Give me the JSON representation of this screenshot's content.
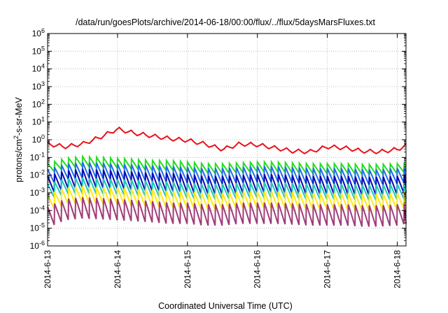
{
  "chart_data": {
    "type": "line",
    "title": "/data/run/goesPlots/archive/2014-06-18/00:00/flux/../flux/5daysMarsFluxes.txt",
    "xlabel": "Coordinated Universal Time (UTC)",
    "ylabel": {
      "prefix": "protons/cm",
      "sup": "2",
      "suffix": "-s-sr-MeV"
    },
    "yscale": "log",
    "ylim": [
      1e-06,
      1000000.0
    ],
    "y_ticks": [
      {
        "value": 1e-06,
        "base": "10",
        "exp": "-6"
      },
      {
        "value": 1e-05,
        "base": "10",
        "exp": "-5"
      },
      {
        "value": 0.0001,
        "base": "10",
        "exp": "-4"
      },
      {
        "value": 0.001,
        "base": "10",
        "exp": "-3"
      },
      {
        "value": 0.01,
        "base": "10",
        "exp": "-2"
      },
      {
        "value": 0.1,
        "base": "10",
        "exp": "-1"
      },
      {
        "value": 1,
        "base": "10",
        "exp": "0"
      },
      {
        "value": 10,
        "base": "10",
        "exp": "1"
      },
      {
        "value": 100,
        "base": "10",
        "exp": "2"
      },
      {
        "value": 1000,
        "base": "10",
        "exp": "3"
      },
      {
        "value": 10000,
        "base": "10",
        "exp": "4"
      },
      {
        "value": 100000,
        "base": "10",
        "exp": "5"
      },
      {
        "value": 1000000,
        "base": "10",
        "exp": "6"
      }
    ],
    "x_ticks": [
      "2014-6-13",
      "2014-6-14",
      "2014-6-15",
      "2014-6-16",
      "2014-6-17",
      "2014-6-18"
    ],
    "xlim": [
      "2014-06-13 00:00",
      "2014-06-18 03:00"
    ],
    "grid": true,
    "legend": "none",
    "series": [
      {
        "color": "#e8131a",
        "x": [
          "2014-06-13 00:00",
          "2014-06-13 06:00",
          "2014-06-13 12:00",
          "2014-06-13 18:00",
          "2014-06-14 00:00",
          "2014-06-14 06:00",
          "2014-06-14 12:00",
          "2014-06-14 18:00",
          "2014-06-15 00:00",
          "2014-06-15 06:00",
          "2014-06-15 12:00",
          "2014-06-15 18:00",
          "2014-06-16 00:00",
          "2014-06-16 06:00",
          "2014-06-16 12:00",
          "2014-06-16 18:00",
          "2014-06-17 00:00",
          "2014-06-17 06:00",
          "2014-06-17 12:00",
          "2014-06-17 18:00",
          "2014-06-18 00:00",
          "2014-06-18 03:00"
        ],
        "values": [
          0.5,
          0.35,
          0.5,
          1.2,
          3.5,
          2.0,
          1.4,
          1.0,
          0.8,
          0.5,
          0.25,
          0.5,
          0.45,
          0.3,
          0.2,
          0.18,
          0.35,
          0.3,
          0.2,
          0.18,
          0.25,
          0.4
        ]
      },
      {
        "color": "#22dd22",
        "x": [
          "2014-06-13 00:00",
          "2014-06-13 06:00",
          "2014-06-13 12:00",
          "2014-06-13 18:00",
          "2014-06-14 00:00",
          "2014-06-14 06:00",
          "2014-06-14 12:00",
          "2014-06-14 18:00",
          "2014-06-15 00:00",
          "2014-06-15 06:00",
          "2014-06-15 12:00",
          "2014-06-15 18:00",
          "2014-06-16 00:00",
          "2014-06-16 06:00",
          "2014-06-16 12:00",
          "2014-06-16 18:00",
          "2014-06-17 00:00",
          "2014-06-17 06:00",
          "2014-06-17 12:00",
          "2014-06-17 18:00",
          "2014-06-18 00:00",
          "2014-06-18 03:00"
        ],
        "values": [
          0.02,
          0.04,
          0.05,
          0.045,
          0.04,
          0.035,
          0.03,
          0.03,
          0.025,
          0.02,
          0.02,
          0.022,
          0.025,
          0.025,
          0.022,
          0.02,
          0.02,
          0.02,
          0.018,
          0.018,
          0.02,
          0.025
        ]
      },
      {
        "color": "#1f6fe8",
        "x": [
          "2014-06-13 00:00",
          "2014-06-13 06:00",
          "2014-06-13 12:00",
          "2014-06-13 18:00",
          "2014-06-14 00:00",
          "2014-06-14 06:00",
          "2014-06-14 12:00",
          "2014-06-14 18:00",
          "2014-06-15 00:00",
          "2014-06-15 06:00",
          "2014-06-15 12:00",
          "2014-06-15 18:00",
          "2014-06-16 00:00",
          "2014-06-16 06:00",
          "2014-06-16 12:00",
          "2014-06-16 18:00",
          "2014-06-17 00:00",
          "2014-06-17 06:00",
          "2014-06-17 12:00",
          "2014-06-17 18:00",
          "2014-06-18 00:00",
          "2014-06-18 03:00"
        ],
        "values": [
          0.006,
          0.012,
          0.015,
          0.014,
          0.012,
          0.011,
          0.01,
          0.009,
          0.008,
          0.007,
          0.007,
          0.008,
          0.009,
          0.009,
          0.008,
          0.007,
          0.007,
          0.007,
          0.006,
          0.006,
          0.007,
          0.008
        ]
      },
      {
        "color": "#0a0ab4",
        "x": [
          "2014-06-13 00:00",
          "2014-06-13 06:00",
          "2014-06-13 12:00",
          "2014-06-13 18:00",
          "2014-06-14 00:00",
          "2014-06-14 06:00",
          "2014-06-14 12:00",
          "2014-06-14 18:00",
          "2014-06-15 00:00",
          "2014-06-15 06:00",
          "2014-06-15 12:00",
          "2014-06-15 18:00",
          "2014-06-16 00:00",
          "2014-06-16 06:00",
          "2014-06-16 12:00",
          "2014-06-16 18:00",
          "2014-06-17 00:00",
          "2014-06-17 06:00",
          "2014-06-17 12:00",
          "2014-06-17 18:00",
          "2014-06-18 00:00",
          "2014-06-18 03:00"
        ],
        "values": [
          0.002,
          0.004,
          0.005,
          0.0045,
          0.004,
          0.0035,
          0.003,
          0.003,
          0.0025,
          0.002,
          0.002,
          0.0022,
          0.0025,
          0.0025,
          0.0022,
          0.002,
          0.002,
          0.002,
          0.0018,
          0.0018,
          0.002,
          0.0025
        ]
      },
      {
        "color": "#20c8b4",
        "x": [
          "2014-06-13 00:00",
          "2014-06-13 06:00",
          "2014-06-13 12:00",
          "2014-06-13 18:00",
          "2014-06-14 00:00",
          "2014-06-14 06:00",
          "2014-06-14 12:00",
          "2014-06-14 18:00",
          "2014-06-15 00:00",
          "2014-06-15 06:00",
          "2014-06-15 12:00",
          "2014-06-15 18:00",
          "2014-06-16 00:00",
          "2014-06-16 06:00",
          "2014-06-16 12:00",
          "2014-06-16 18:00",
          "2014-06-17 00:00",
          "2014-06-17 06:00",
          "2014-06-17 12:00",
          "2014-06-17 18:00",
          "2014-06-18 00:00",
          "2014-06-18 03:00"
        ],
        "values": [
          0.0009,
          0.0018,
          0.002,
          0.0018,
          0.0016,
          0.0015,
          0.0013,
          0.0012,
          0.001,
          0.0009,
          0.0009,
          0.001,
          0.0011,
          0.0011,
          0.001,
          0.0009,
          0.0009,
          0.0009,
          0.0008,
          0.0008,
          0.0009,
          0.001
        ]
      },
      {
        "color": "#ffe81a",
        "x": [
          "2014-06-13 00:00",
          "2014-06-13 06:00",
          "2014-06-13 12:00",
          "2014-06-13 18:00",
          "2014-06-14 00:00",
          "2014-06-14 06:00",
          "2014-06-14 12:00",
          "2014-06-14 18:00",
          "2014-06-15 00:00",
          "2014-06-15 06:00",
          "2014-06-15 12:00",
          "2014-06-15 18:00",
          "2014-06-16 00:00",
          "2014-06-16 06:00",
          "2014-06-16 12:00",
          "2014-06-16 18:00",
          "2014-06-17 00:00",
          "2014-06-17 06:00",
          "2014-06-17 12:00",
          "2014-06-17 18:00",
          "2014-06-18 00:00",
          "2014-06-18 03:00"
        ],
        "values": [
          0.0002,
          0.0005,
          0.0006,
          0.0005,
          0.0005,
          0.0004,
          0.0004,
          0.0003,
          0.0003,
          0.00025,
          0.00025,
          0.0003,
          0.0003,
          0.0003,
          0.00028,
          0.00025,
          0.00025,
          0.00025,
          0.00022,
          0.00022,
          0.00025,
          0.0003
        ]
      },
      {
        "color": "#a03c78",
        "x": [
          "2014-06-13 00:00",
          "2014-06-13 06:00",
          "2014-06-13 12:00",
          "2014-06-13 18:00",
          "2014-06-14 00:00",
          "2014-06-14 06:00",
          "2014-06-14 12:00",
          "2014-06-14 18:00",
          "2014-06-15 00:00",
          "2014-06-15 06:00",
          "2014-06-15 12:00",
          "2014-06-15 18:00",
          "2014-06-16 00:00",
          "2014-06-16 06:00",
          "2014-06-16 12:00",
          "2014-06-16 18:00",
          "2014-06-17 00:00",
          "2014-06-17 06:00",
          "2014-06-17 12:00",
          "2014-06-17 18:00",
          "2014-06-18 00:00",
          "2014-06-18 03:00"
        ],
        "values": [
          3e-05,
          8e-05,
          0.0001,
          9e-05,
          8e-05,
          7e-05,
          6e-05,
          5e-05,
          5e-05,
          4e-05,
          4e-05,
          5e-05,
          5e-05,
          5e-05,
          4.5e-05,
          4e-05,
          4e-05,
          4e-05,
          3.5e-05,
          3.5e-05,
          4e-05,
          5e-05
        ]
      }
    ]
  }
}
